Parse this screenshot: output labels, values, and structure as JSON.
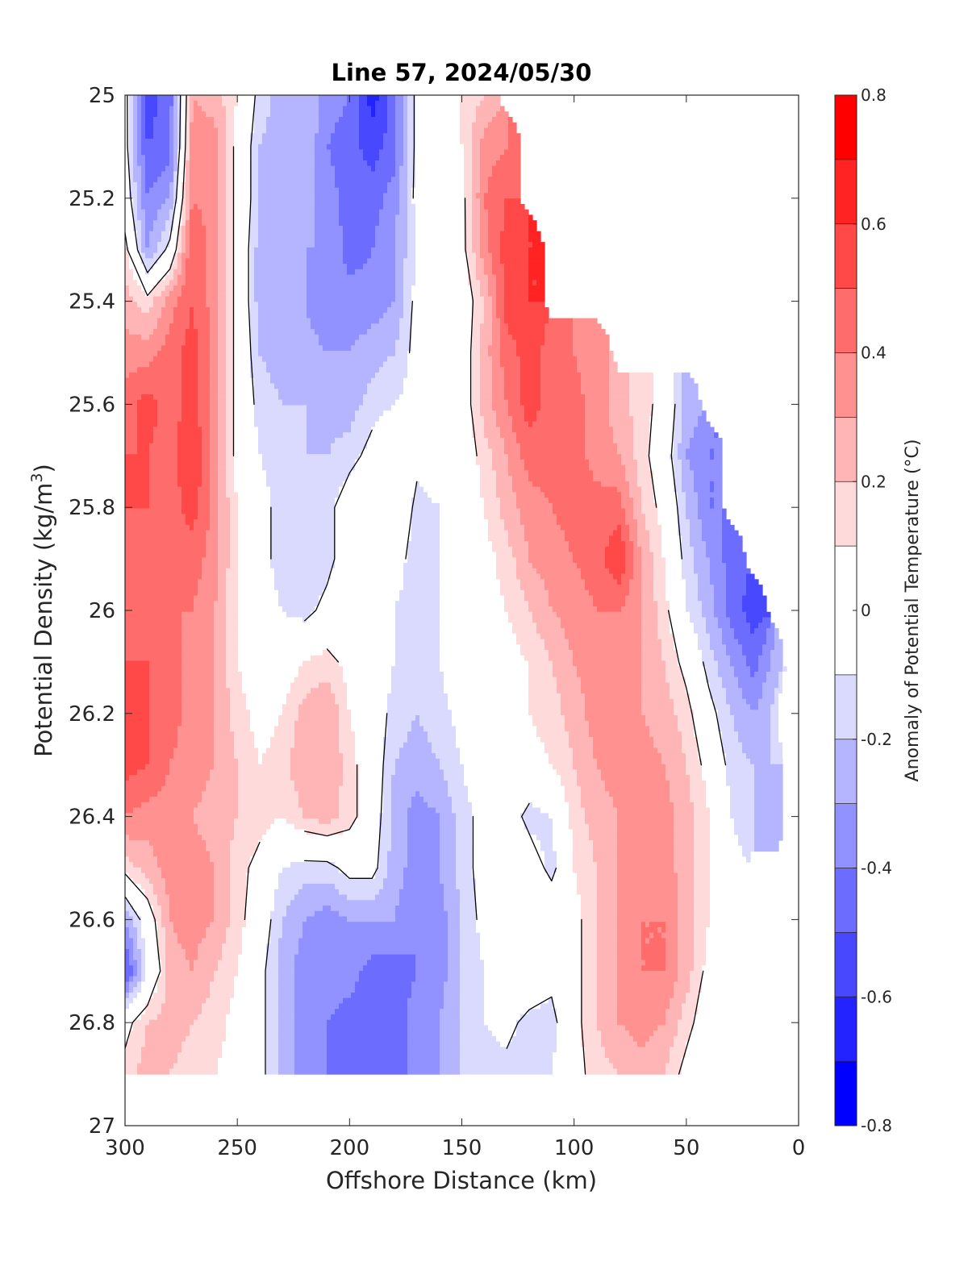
{
  "chart_data": {
    "type": "contour",
    "title": "Line 57, 2024/05/30",
    "xlabel": "Offshore Distance (km)",
    "ylabel": "Potential Density (kg/m3)",
    "ylabel_main": "Potential Density (kg/m",
    "ylabel_sup": "3",
    "ylabel_end": ")",
    "xlim": [
      300,
      0
    ],
    "ylim": [
      25,
      27
    ],
    "y_reversed": true,
    "x_reversed": true,
    "x_ticks": [
      "300",
      "250",
      "200",
      "150",
      "100",
      "50",
      "0"
    ],
    "x_tick_values": [
      300,
      250,
      200,
      150,
      100,
      50,
      0
    ],
    "y_ticks": [
      "25",
      "25.2",
      "25.4",
      "25.6",
      "25.8",
      "26",
      "26.2",
      "26.4",
      "26.6",
      "26.8",
      "27"
    ],
    "y_tick_values": [
      25,
      25.2,
      25.4,
      25.6,
      25.8,
      26,
      26.2,
      26.4,
      26.6,
      26.8,
      27
    ],
    "colorbar": {
      "label": "Anomaly of Potential Temperature (°C)",
      "tick_labels": [
        "0.8",
        "0.6",
        "0.4",
        "0.2",
        "0",
        "-0.2",
        "-0.4",
        "-0.6",
        "-0.8"
      ],
      "tick_values": [
        0.8,
        0.6,
        0.4,
        0.2,
        0,
        -0.2,
        -0.4,
        -0.6,
        -0.8
      ],
      "levels": [
        -0.8,
        -0.7,
        -0.6,
        -0.5,
        -0.4,
        -0.3,
        -0.2,
        -0.1,
        0.1,
        0.2,
        0.3,
        0.4,
        0.5,
        0.6,
        0.7,
        0.8
      ],
      "bands": [
        {
          "lo": 0.7,
          "hi": 0.8,
          "color": "#ff0000"
        },
        {
          "lo": 0.6,
          "hi": 0.7,
          "color": "#ff2323"
        },
        {
          "lo": 0.5,
          "hi": 0.6,
          "color": "#ff4848"
        },
        {
          "lo": 0.4,
          "hi": 0.5,
          "color": "#ff6c6c"
        },
        {
          "lo": 0.3,
          "hi": 0.4,
          "color": "#ff9191"
        },
        {
          "lo": 0.2,
          "hi": 0.3,
          "color": "#ffb5b5"
        },
        {
          "lo": 0.1,
          "hi": 0.2,
          "color": "#ffdada"
        },
        {
          "lo": -0.1,
          "hi": 0.1,
          "color": "#ffffff"
        },
        {
          "lo": -0.2,
          "hi": -0.1,
          "color": "#dadaff"
        },
        {
          "lo": -0.3,
          "hi": -0.2,
          "color": "#b5b5ff"
        },
        {
          "lo": -0.4,
          "hi": -0.3,
          "color": "#9191ff"
        },
        {
          "lo": -0.5,
          "hi": -0.4,
          "color": "#6c6cff"
        },
        {
          "lo": -0.6,
          "hi": -0.5,
          "color": "#4848ff"
        },
        {
          "lo": -0.7,
          "hi": -0.6,
          "color": "#2323ff"
        },
        {
          "lo": -0.8,
          "hi": -0.7,
          "color": "#0000ff"
        }
      ]
    },
    "zero_contour_color": "#000000",
    "field": {
      "x_km": [
        300,
        290,
        280,
        270,
        260,
        250,
        240,
        230,
        220,
        210,
        200,
        190,
        180,
        170,
        160,
        150,
        140,
        130,
        120,
        110,
        100,
        90,
        80,
        70,
        60,
        50,
        40,
        30,
        20,
        10,
        5
      ],
      "sigma": [
        25.0,
        25.1,
        25.2,
        25.3,
        25.4,
        25.5,
        25.6,
        25.7,
        25.8,
        25.9,
        26.0,
        26.1,
        26.2,
        26.3,
        26.4,
        26.5,
        26.6,
        26.7,
        26.8,
        26.9
      ],
      "coast_edge": [
        {
          "sigma": 25.0,
          "x_km": 145
        },
        {
          "sigma": 25.5,
          "x_km": 120
        },
        {
          "sigma": 25.5,
          "x_km": 90
        },
        {
          "sigma": 25.6,
          "x_km": 85
        },
        {
          "sigma": 25.6,
          "x_km": 50
        },
        {
          "sigma": 26.0,
          "x_km": 30
        },
        {
          "sigma": 26.1,
          "x_km": 20
        },
        {
          "sigma": 26.2,
          "x_km": 5
        },
        {
          "sigma": 26.4,
          "x_km": 5
        },
        {
          "sigma": 26.4,
          "x_km": 20
        },
        {
          "sigma": 26.9,
          "x_km": 35
        }
      ],
      "deep_limit_sigma": 26.9,
      "values": [
        [
          -0.05,
          -0.55,
          -0.45,
          0.3,
          0.25,
          0.1,
          -0.15,
          -0.25,
          -0.2,
          -0.35,
          -0.4,
          -0.65,
          -0.45,
          -0.05,
          0.05,
          0.1,
          0.2,
          null,
          null,
          null,
          null,
          null,
          null,
          null,
          null,
          null,
          null,
          null,
          null,
          null,
          null
        ],
        [
          -0.05,
          -0.5,
          -0.45,
          0.35,
          0.35,
          0.05,
          -0.2,
          -0.25,
          -0.2,
          -0.4,
          -0.45,
          -0.55,
          -0.45,
          -0.05,
          0.05,
          0.1,
          0.35,
          0.4,
          null,
          null,
          null,
          null,
          null,
          null,
          null,
          null,
          null,
          null,
          null,
          null,
          null
        ],
        [
          0.0,
          -0.4,
          -0.3,
          0.4,
          0.35,
          0.05,
          -0.2,
          -0.3,
          -0.25,
          -0.35,
          -0.45,
          -0.45,
          -0.35,
          -0.05,
          0.05,
          0.05,
          0.4,
          0.5,
          null,
          null,
          null,
          null,
          null,
          null,
          null,
          null,
          null,
          null,
          null,
          null,
          null
        ],
        [
          0.15,
          -0.3,
          -0.05,
          0.5,
          0.35,
          0.05,
          -0.25,
          -0.3,
          -0.3,
          -0.3,
          -0.45,
          -0.4,
          -0.3,
          -0.1,
          0.0,
          0.05,
          0.35,
          0.55,
          0.6,
          null,
          null,
          null,
          null,
          null,
          null,
          null,
          null,
          null,
          null,
          null,
          null
        ],
        [
          0.25,
          0.15,
          0.35,
          0.5,
          0.35,
          0.05,
          -0.25,
          -0.25,
          -0.3,
          -0.4,
          -0.35,
          -0.35,
          -0.3,
          -0.05,
          0.05,
          0.0,
          0.2,
          0.55,
          0.6,
          null,
          null,
          null,
          null,
          null,
          null,
          null,
          null,
          null,
          null,
          null,
          null
        ],
        [
          0.35,
          0.35,
          0.45,
          0.55,
          0.35,
          0.05,
          -0.2,
          -0.25,
          -0.25,
          -0.3,
          -0.3,
          -0.25,
          -0.2,
          -0.05,
          0.0,
          0.0,
          0.25,
          0.45,
          0.55,
          0.45,
          0.4,
          0.3,
          null,
          null,
          null,
          null,
          null,
          null,
          null,
          null,
          null
        ],
        [
          0.45,
          0.55,
          0.45,
          0.55,
          0.35,
          0.05,
          -0.15,
          -0.2,
          -0.2,
          -0.25,
          -0.25,
          -0.15,
          -0.1,
          -0.05,
          0.0,
          0.0,
          0.25,
          0.4,
          0.55,
          0.45,
          0.45,
          0.35,
          0.25,
          0.15,
          0.05,
          -0.25,
          null,
          null,
          null,
          null,
          null
        ],
        [
          0.5,
          0.5,
          0.45,
          0.6,
          0.35,
          0.05,
          -0.1,
          -0.15,
          -0.2,
          -0.2,
          -0.15,
          -0.05,
          0.05,
          -0.05,
          0.0,
          0.0,
          0.15,
          0.3,
          0.45,
          0.45,
          0.45,
          0.35,
          0.3,
          0.15,
          0.0,
          -0.3,
          -0.4,
          null,
          null,
          null,
          null
        ],
        [
          0.5,
          0.5,
          0.45,
          0.55,
          0.35,
          0.1,
          -0.05,
          -0.15,
          -0.2,
          -0.15,
          0.0,
          0.1,
          0.1,
          -0.15,
          -0.1,
          0.0,
          0.1,
          0.25,
          0.35,
          0.4,
          0.45,
          0.45,
          0.45,
          0.2,
          0.05,
          -0.2,
          -0.4,
          null,
          null,
          null,
          null
        ],
        [
          0.45,
          0.45,
          0.45,
          0.45,
          0.35,
          0.1,
          -0.05,
          -0.15,
          -0.2,
          -0.15,
          0.0,
          0.05,
          -0.05,
          -0.15,
          -0.1,
          0.0,
          0.05,
          0.15,
          0.3,
          0.35,
          0.4,
          0.45,
          0.6,
          0.3,
          0.1,
          -0.15,
          -0.3,
          -0.45,
          null,
          null,
          null
        ],
        [
          0.45,
          0.45,
          0.4,
          0.4,
          0.3,
          0.1,
          -0.05,
          -0.1,
          -0.15,
          -0.05,
          0.05,
          0.0,
          -0.1,
          -0.15,
          -0.1,
          0.0,
          0.05,
          0.1,
          0.2,
          0.3,
          0.35,
          0.4,
          0.4,
          0.3,
          0.15,
          -0.1,
          -0.25,
          -0.45,
          -0.55,
          null,
          null
        ],
        [
          0.5,
          0.5,
          0.45,
          0.35,
          0.3,
          0.1,
          0.0,
          0.0,
          0.1,
          0.15,
          0.05,
          0.0,
          -0.1,
          -0.15,
          -0.1,
          0.0,
          0.05,
          0.05,
          0.1,
          0.2,
          0.3,
          0.35,
          0.35,
          0.3,
          0.2,
          0.05,
          -0.15,
          -0.3,
          -0.45,
          -0.25,
          null
        ],
        [
          0.6,
          0.5,
          0.45,
          0.35,
          0.3,
          0.15,
          0.05,
          0.1,
          0.25,
          0.3,
          0.1,
          0.0,
          -0.15,
          -0.2,
          -0.15,
          -0.05,
          0.0,
          0.05,
          0.1,
          0.15,
          0.25,
          0.35,
          0.35,
          0.3,
          0.25,
          0.15,
          -0.05,
          -0.2,
          -0.3,
          -0.15,
          0.15
        ],
        [
          0.55,
          0.5,
          0.4,
          0.35,
          0.3,
          0.2,
          0.1,
          0.15,
          0.3,
          0.3,
          0.15,
          0.0,
          -0.2,
          -0.25,
          -0.2,
          -0.1,
          0.0,
          0.0,
          0.05,
          0.1,
          0.2,
          0.3,
          0.35,
          0.35,
          0.3,
          0.2,
          0.05,
          -0.15,
          -0.2,
          -0.2,
          null
        ],
        [
          0.4,
          0.35,
          0.35,
          0.3,
          0.25,
          0.2,
          0.15,
          0.1,
          0.2,
          0.25,
          0.15,
          0.0,
          -0.25,
          -0.35,
          -0.3,
          -0.15,
          -0.05,
          0.0,
          -0.15,
          -0.1,
          0.15,
          0.25,
          0.3,
          0.35,
          0.35,
          0.25,
          0.1,
          -0.1,
          -0.2,
          -0.25,
          null
        ],
        [
          0.15,
          0.25,
          0.35,
          0.35,
          0.3,
          0.15,
          0.05,
          -0.1,
          -0.15,
          -0.15,
          -0.05,
          -0.05,
          -0.25,
          -0.35,
          -0.3,
          -0.15,
          -0.05,
          0.05,
          0.0,
          -0.15,
          0.1,
          0.2,
          0.3,
          0.35,
          0.35,
          0.25,
          0.1,
          -0.05,
          null,
          null,
          null
        ],
        [
          -0.3,
          0.0,
          0.3,
          0.35,
          0.3,
          0.15,
          0.0,
          -0.2,
          -0.3,
          -0.35,
          -0.3,
          -0.3,
          -0.3,
          -0.4,
          -0.35,
          -0.2,
          -0.05,
          -0.05,
          0.0,
          0.05,
          0.05,
          0.2,
          0.3,
          0.4,
          0.4,
          0.25,
          0.1,
          0.0,
          null,
          null,
          null
        ],
        [
          -0.55,
          -0.1,
          0.25,
          0.3,
          0.2,
          0.1,
          -0.05,
          -0.25,
          -0.35,
          -0.35,
          -0.35,
          -0.45,
          -0.45,
          -0.4,
          -0.35,
          -0.2,
          -0.1,
          0.0,
          0.05,
          -0.05,
          0.05,
          0.2,
          0.3,
          0.4,
          0.4,
          0.25,
          0.05,
          0.0,
          null,
          null,
          null
        ],
        [
          0.05,
          0.2,
          0.25,
          0.2,
          0.15,
          0.05,
          -0.05,
          -0.25,
          -0.35,
          -0.4,
          -0.45,
          -0.45,
          -0.45,
          -0.35,
          -0.3,
          -0.2,
          -0.1,
          -0.05,
          -0.15,
          -0.15,
          0.05,
          0.2,
          0.3,
          0.35,
          0.3,
          0.15,
          0.0,
          null,
          null,
          null,
          null
        ],
        [
          0.15,
          0.25,
          0.2,
          0.15,
          0.1,
          0.05,
          -0.05,
          -0.25,
          -0.35,
          -0.4,
          -0.45,
          -0.45,
          -0.45,
          -0.35,
          -0.3,
          -0.2,
          -0.15,
          -0.15,
          -0.15,
          -0.1,
          0.05,
          0.15,
          0.2,
          0.25,
          0.2,
          0.05,
          -0.1,
          null,
          null,
          null,
          null
        ]
      ]
    }
  }
}
